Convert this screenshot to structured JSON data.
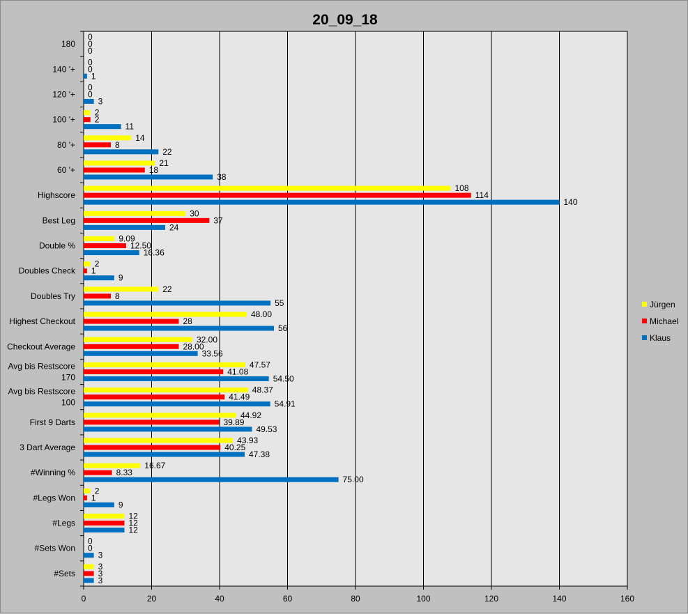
{
  "chart_data": {
    "type": "bar",
    "orientation": "horizontal",
    "title": "20_09_18",
    "xlim": [
      0,
      160
    ],
    "x_ticks": [
      "0",
      "20",
      "40",
      "60",
      "80",
      "100",
      "120",
      "140",
      "160"
    ],
    "grid": true,
    "legend_position": "right",
    "categories": [
      [
        "180"
      ],
      [
        "140 '+"
      ],
      [
        "120 '+"
      ],
      [
        "100 '+"
      ],
      [
        "80 '+"
      ],
      [
        "60 '+"
      ],
      [
        "Highscore"
      ],
      [
        "Best Leg"
      ],
      [
        "Double %"
      ],
      [
        "Doubles Check"
      ],
      [
        "Doubles Try"
      ],
      [
        "Highest Checkout"
      ],
      [
        "Checkout Average"
      ],
      [
        "Avg bis Restscore",
        "170"
      ],
      [
        "Avg bis Restscore",
        "100"
      ],
      [
        "First 9 Darts"
      ],
      [
        "3 Dart Average"
      ],
      [
        "#Winning %"
      ],
      [
        "#Legs Won"
      ],
      [
        "#Legs"
      ],
      [
        "#Sets Won"
      ],
      [
        "#Sets"
      ]
    ],
    "series": [
      {
        "name": "Jürgen",
        "color": "#ffff00",
        "values": [
          0,
          0,
          0,
          2,
          14,
          21,
          108,
          30,
          9.09,
          2,
          22,
          48,
          32,
          47.57,
          48.37,
          44.92,
          43.93,
          16.67,
          2,
          12,
          0,
          3
        ],
        "labels": [
          "0",
          "0",
          "0",
          "2",
          "14",
          "21",
          "108",
          "30",
          "9.09",
          "2",
          "22",
          "48.00",
          "32.00",
          "47.57",
          "48.37",
          "44.92",
          "43.93",
          "16.67",
          "2",
          "12",
          "0",
          "3"
        ]
      },
      {
        "name": "Michael",
        "color": "#ff0000",
        "values": [
          0,
          0,
          0,
          2,
          8,
          18,
          114,
          37,
          12.5,
          1,
          8,
          28,
          28,
          41.08,
          41.49,
          39.89,
          40.25,
          8.33,
          1,
          12,
          0,
          3
        ],
        "labels": [
          "0",
          "0",
          "0",
          "2",
          "8",
          "18",
          "114",
          "37",
          "12.50",
          "1",
          "8",
          "28",
          "28.00",
          "41.08",
          "41.49",
          "39.89",
          "40.25",
          "8.33",
          "1",
          "12",
          "0",
          "3"
        ]
      },
      {
        "name": "Klaus",
        "color": "#0070c0",
        "values": [
          0,
          1,
          3,
          11,
          22,
          38,
          140,
          24,
          16.36,
          9,
          55,
          56,
          33.56,
          54.5,
          54.91,
          49.53,
          47.38,
          75,
          9,
          12,
          3,
          3
        ],
        "labels": [
          "0",
          "1",
          "3",
          "11",
          "22",
          "38",
          "140",
          "24",
          "16.36",
          "9",
          "55",
          "56",
          "33.56",
          "54.50",
          "54.91",
          "49.53",
          "47.38",
          "75.00",
          "9",
          "12",
          "3",
          "3"
        ]
      }
    ]
  }
}
